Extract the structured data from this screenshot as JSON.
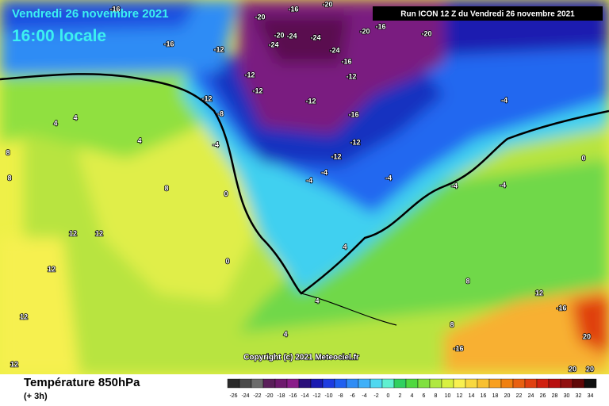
{
  "header": {
    "date": "Vendredi 26 novembre 2021",
    "time": "16:00 locale",
    "run": "Run ICON 12 Z du Vendredi 26 novembre 2021"
  },
  "copyright": "Copyright (c) 2021 Meteociel.fr",
  "footer": {
    "title": "Température 850hPa",
    "step": "(+ 3h)"
  },
  "legend": {
    "values": [
      -26,
      -24,
      -22,
      -20,
      -18,
      -16,
      -14,
      -12,
      -10,
      -8,
      -6,
      -4,
      -2,
      0,
      2,
      4,
      6,
      8,
      10,
      12,
      14,
      16,
      18,
      20,
      22,
      24,
      26,
      28,
      30,
      32,
      34
    ],
    "colors": [
      "#2a2a2a",
      "#4a4a4a",
      "#6b6b6b",
      "#5a1f5a",
      "#6e1a6e",
      "#8a1e8a",
      "#2a0f7a",
      "#1a1ab0",
      "#1e3ce0",
      "#2060f0",
      "#2f8cf5",
      "#40b0f8",
      "#50d8f0",
      "#60f0d0",
      "#30d060",
      "#50d840",
      "#80e040",
      "#b0e840",
      "#d8f040",
      "#f8f050",
      "#f8d840",
      "#f8c030",
      "#f8a020",
      "#f08010",
      "#e86010",
      "#e04010",
      "#d02010",
      "#b81010",
      "#901010",
      "#600808",
      "#101010"
    ]
  },
  "map_labels": [
    "-16",
    "-20",
    "-20",
    "-16",
    "-20",
    "-24",
    "-24",
    "-24",
    "-20",
    "-16",
    "-20",
    "-16",
    "-12",
    "-24",
    "-16",
    "-12",
    "-12",
    "-12",
    "-12",
    "-12",
    "-16",
    "-12",
    "-12",
    "-8",
    "-4",
    "-4",
    "-4",
    "-4",
    "-4",
    "-4",
    "-4",
    "0",
    "4",
    "4",
    "4",
    "8",
    "8",
    "8",
    "12",
    "12",
    "12",
    "12",
    "0",
    "0",
    "4",
    "4",
    "8",
    "12",
    "-16",
    "-16",
    "20",
    "20",
    "20",
    "12",
    "4",
    "8"
  ]
}
